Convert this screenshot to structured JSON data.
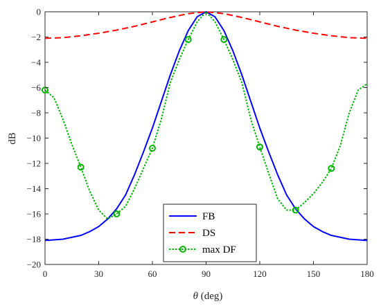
{
  "chart_data": {
    "type": "line",
    "title": "",
    "xlabel_symbol": "θ",
    "xlabel_unit": "(deg)",
    "ylabel": "dB",
    "xlim": [
      0,
      180
    ],
    "ylim": [
      -20,
      0
    ],
    "x_ticks": [
      0,
      30,
      60,
      90,
      120,
      150,
      180
    ],
    "y_ticks": [
      -20,
      -18,
      -16,
      -14,
      -12,
      -10,
      -8,
      -6,
      -4,
      -2,
      0
    ],
    "grid": false,
    "legend_position": "bottom-center",
    "series": [
      {
        "name": "FB",
        "color": "#0000ff",
        "style": "solid",
        "marker": "none",
        "x": [
          0,
          10,
          20,
          25,
          30,
          35,
          40,
          45,
          50,
          55,
          60,
          65,
          70,
          75,
          80,
          85,
          90,
          95,
          100,
          105,
          110,
          115,
          120,
          125,
          130,
          135,
          140,
          145,
          150,
          155,
          160,
          170,
          180
        ],
        "y": [
          -18.1,
          -18.0,
          -17.7,
          -17.4,
          -17.0,
          -16.4,
          -15.6,
          -14.5,
          -12.9,
          -11.1,
          -9.2,
          -7.1,
          -5.0,
          -3.1,
          -1.5,
          -0.4,
          0.0,
          -0.4,
          -1.5,
          -3.1,
          -5.0,
          -7.1,
          -9.2,
          -11.1,
          -12.9,
          -14.5,
          -15.6,
          -16.4,
          -17.0,
          -17.4,
          -17.7,
          -18.0,
          -18.1
        ]
      },
      {
        "name": "DS",
        "color": "#ff0000",
        "style": "dashed",
        "marker": "none",
        "x": [
          0,
          10,
          20,
          30,
          40,
          50,
          60,
          70,
          80,
          90,
          100,
          110,
          120,
          130,
          140,
          150,
          160,
          170,
          180
        ],
        "y": [
          -2.1,
          -2.05,
          -1.9,
          -1.7,
          -1.45,
          -1.15,
          -0.8,
          -0.45,
          -0.15,
          0.0,
          -0.15,
          -0.45,
          -0.8,
          -1.15,
          -1.45,
          -1.7,
          -1.9,
          -2.05,
          -2.1
        ]
      },
      {
        "name": "max DF",
        "color": "#00b400",
        "style": "dotted",
        "marker": "circle",
        "x": [
          0,
          5,
          10,
          15,
          20,
          25,
          30,
          35,
          40,
          45,
          50,
          55,
          60,
          65,
          70,
          75,
          80,
          85,
          90,
          95,
          100,
          105,
          110,
          115,
          120,
          125,
          130,
          135,
          140,
          145,
          150,
          155,
          160,
          165,
          170,
          175,
          180
        ],
        "y": [
          -6.2,
          -6.8,
          -8.5,
          -10.5,
          -12.3,
          -14.2,
          -15.7,
          -16.4,
          -16.0,
          -15.4,
          -14.0,
          -12.4,
          -10.8,
          -8.5,
          -5.6,
          -3.8,
          -2.2,
          -0.8,
          0.0,
          -0.8,
          -2.2,
          -3.8,
          -5.6,
          -8.5,
          -10.7,
          -12.8,
          -14.8,
          -15.7,
          -15.7,
          -15.1,
          -14.4,
          -13.5,
          -12.4,
          -10.6,
          -8.0,
          -6.2,
          -5.7
        ],
        "marker_x": [
          0,
          20,
          40,
          60,
          80,
          100,
          120,
          140,
          160
        ],
        "marker_y": [
          -6.2,
          -12.3,
          -16.0,
          -10.8,
          -2.2,
          -2.2,
          -10.7,
          -15.7,
          -12.4
        ]
      }
    ]
  }
}
